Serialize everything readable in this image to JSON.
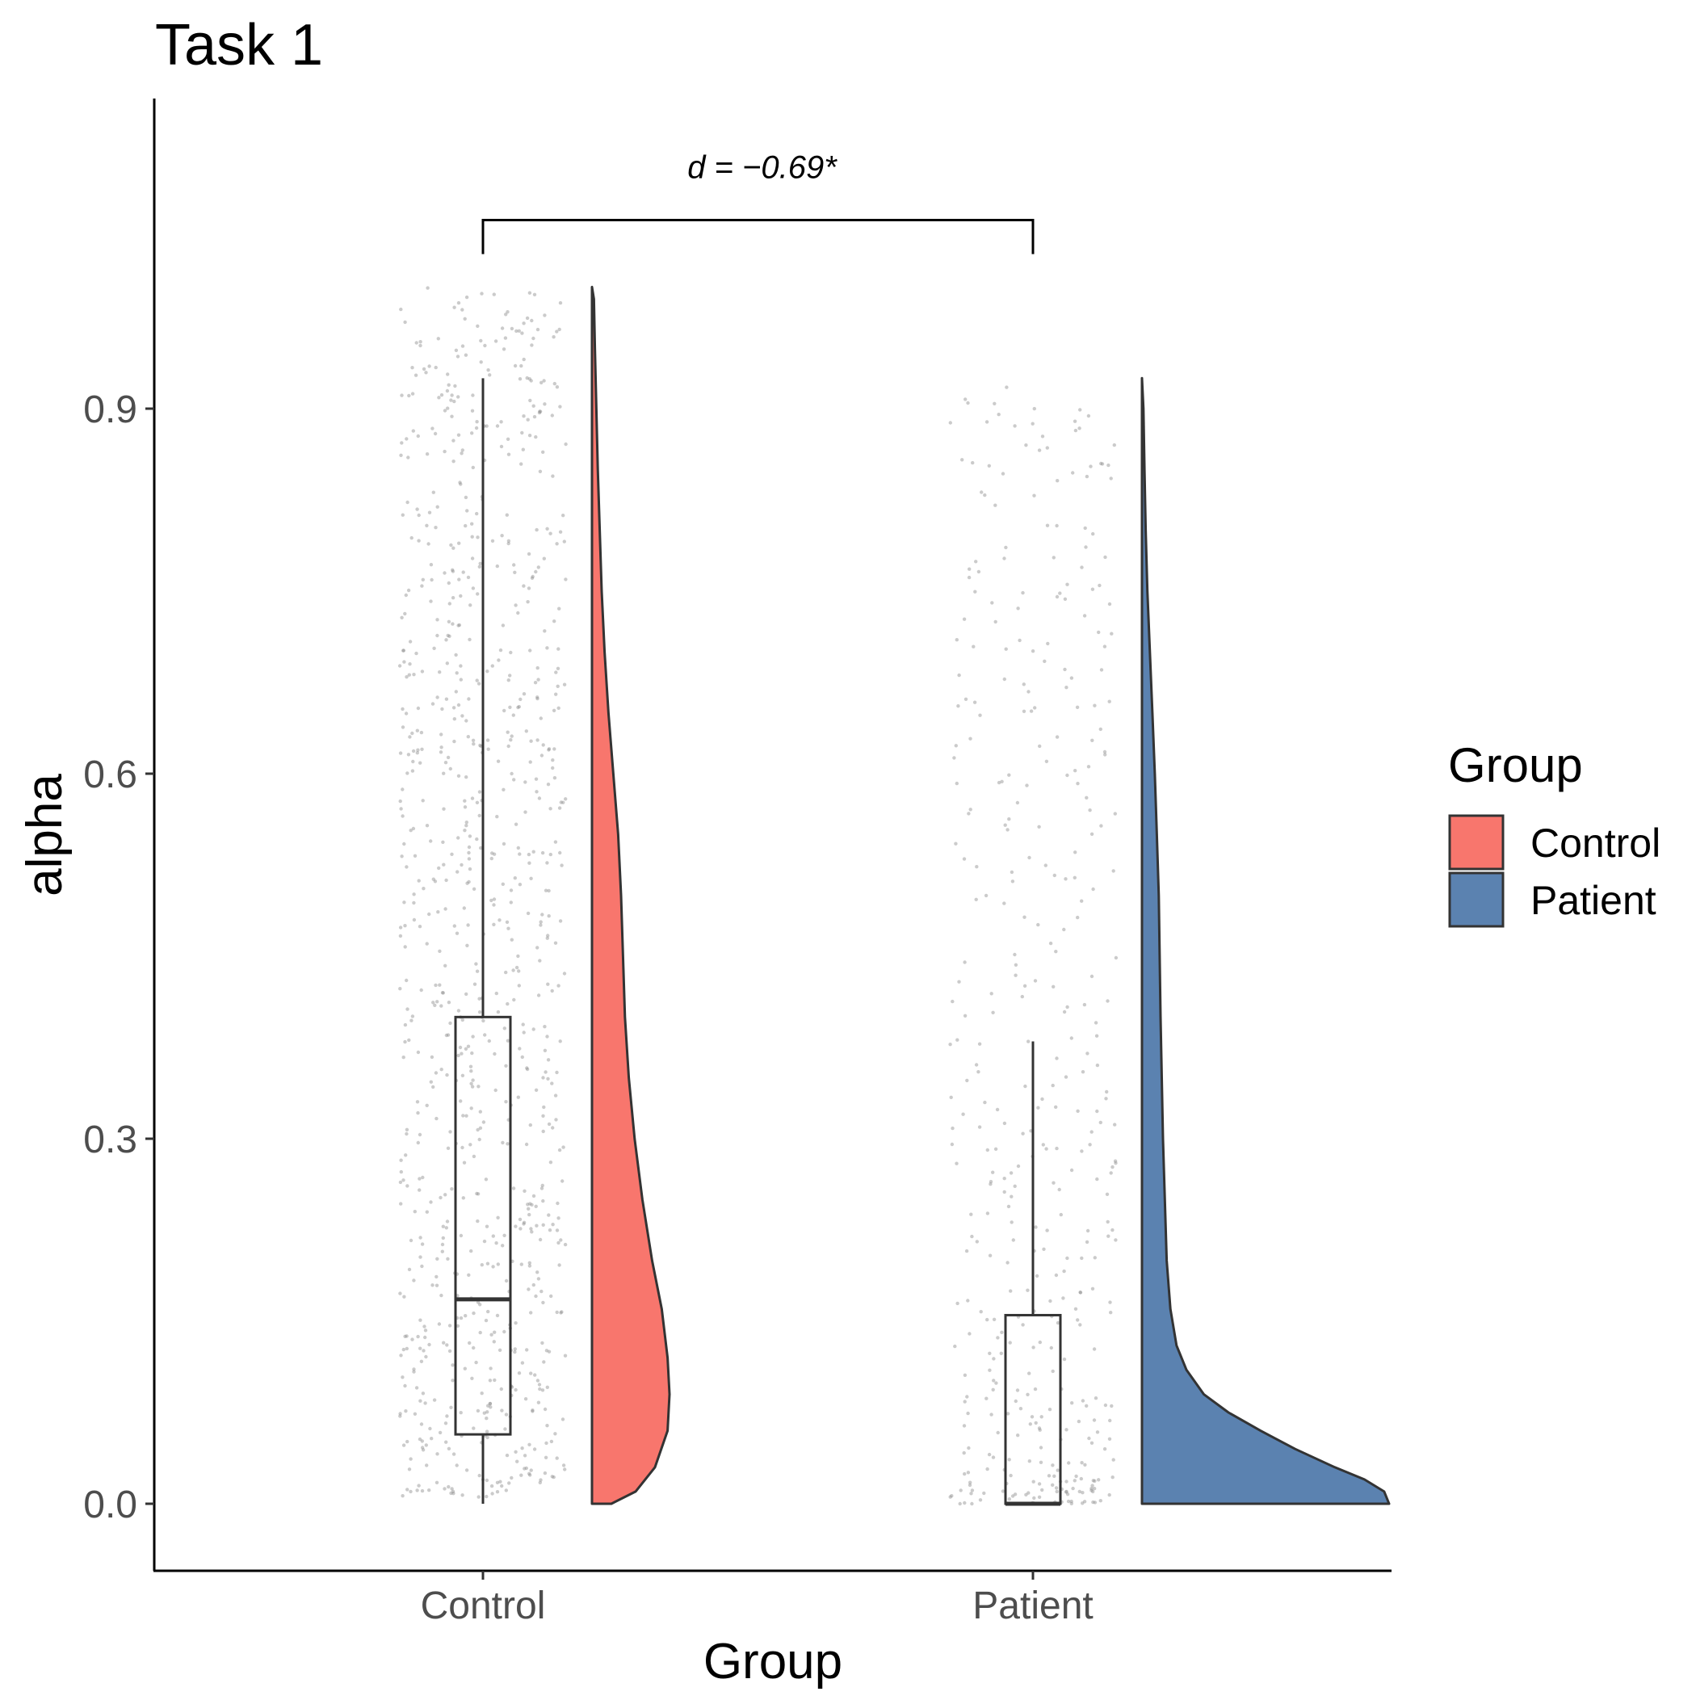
{
  "chart_data": {
    "type": "raincloud",
    "title": "Task 1",
    "xlabel": "Group",
    "ylabel": "alpha",
    "categories": [
      "Control",
      "Patient"
    ],
    "ylim": [
      -0.055,
      1.12
    ],
    "yticks": [
      0.0,
      0.3,
      0.6,
      0.9
    ],
    "ytick_labels": [
      "0.0",
      "0.3",
      "0.6",
      "0.9"
    ],
    "grid": false,
    "legend": {
      "title": "Group",
      "position": "right",
      "entries": [
        {
          "label": "Control",
          "color": "#F8766D"
        },
        {
          "label": "Patient",
          "color": "#5B82B0"
        }
      ]
    },
    "annotation": {
      "text": "d = −0.69*",
      "from": "Control",
      "to": "Patient",
      "bracket_y": 1.055,
      "bracket_drop": 0.028
    },
    "groups": [
      {
        "name": "Control",
        "color": "#F8766D",
        "box": {
          "min": 0.0,
          "q1": 0.057,
          "median": 0.168,
          "q3": 0.4,
          "max": 0.925
        },
        "density_max": 1.0,
        "density": [
          [
            0.0,
            0.2
          ],
          [
            0.01,
            0.45
          ],
          [
            0.03,
            0.65
          ],
          [
            0.06,
            0.78
          ],
          [
            0.09,
            0.8
          ],
          [
            0.12,
            0.78
          ],
          [
            0.16,
            0.72
          ],
          [
            0.2,
            0.62
          ],
          [
            0.25,
            0.52
          ],
          [
            0.3,
            0.44
          ],
          [
            0.35,
            0.38
          ],
          [
            0.4,
            0.34
          ],
          [
            0.45,
            0.32
          ],
          [
            0.5,
            0.3
          ],
          [
            0.55,
            0.27
          ],
          [
            0.6,
            0.22
          ],
          [
            0.65,
            0.17
          ],
          [
            0.7,
            0.13
          ],
          [
            0.75,
            0.1
          ],
          [
            0.8,
            0.08
          ],
          [
            0.85,
            0.06
          ],
          [
            0.9,
            0.045
          ],
          [
            0.95,
            0.03
          ],
          [
            0.99,
            0.02
          ],
          [
            1.0,
            0.0
          ]
        ],
        "points_n": 900,
        "points_min": 0.005,
        "points_max": 1.0,
        "points_shape": 1.2
      },
      {
        "name": "Patient",
        "color": "#5B82B0",
        "box": {
          "min": 0.0,
          "q1": 0.0,
          "median": 0.0,
          "q3": 0.155,
          "max": 0.38
        },
        "density_max": 0.925,
        "density": [
          [
            0.0,
            1.0
          ],
          [
            0.01,
            0.98
          ],
          [
            0.02,
            0.9
          ],
          [
            0.03,
            0.78
          ],
          [
            0.045,
            0.62
          ],
          [
            0.06,
            0.48
          ],
          [
            0.075,
            0.35
          ],
          [
            0.09,
            0.25
          ],
          [
            0.11,
            0.18
          ],
          [
            0.13,
            0.14
          ],
          [
            0.16,
            0.115
          ],
          [
            0.2,
            0.1
          ],
          [
            0.3,
            0.085
          ],
          [
            0.4,
            0.075
          ],
          [
            0.5,
            0.068
          ],
          [
            0.55,
            0.06
          ],
          [
            0.6,
            0.052
          ],
          [
            0.65,
            0.042
          ],
          [
            0.7,
            0.032
          ],
          [
            0.75,
            0.022
          ],
          [
            0.8,
            0.015
          ],
          [
            0.85,
            0.01
          ],
          [
            0.9,
            0.006
          ],
          [
            0.925,
            0.0
          ]
        ],
        "points_n": 420,
        "points_min": 0.0,
        "points_max": 0.925,
        "points_shape": 1.8
      }
    ]
  }
}
